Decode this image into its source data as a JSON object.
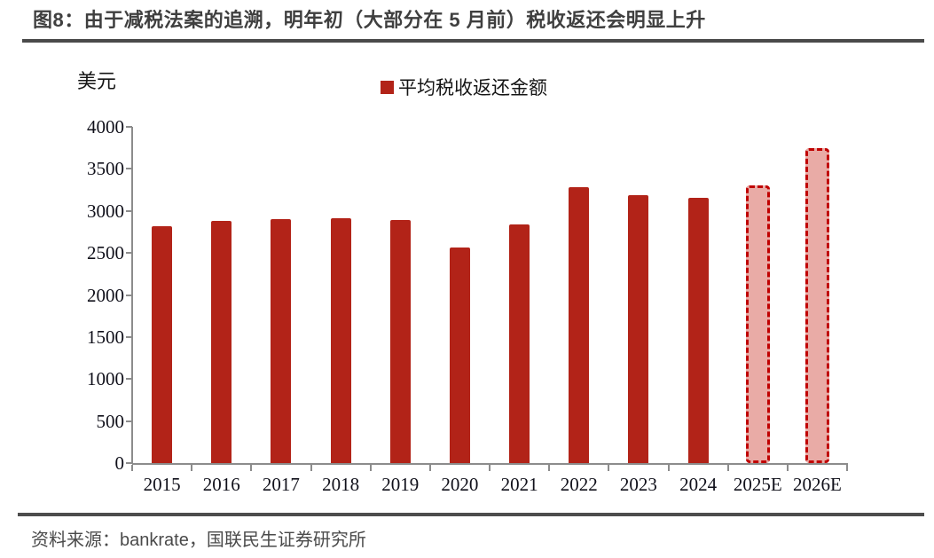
{
  "figure": {
    "title": "图8：由于减税法案的追溯，明年初（大部分在 5 月前）税收返还会明显上升",
    "source": "资料来源：bankrate，国联民生证券研究所"
  },
  "chart_data": {
    "type": "bar",
    "title": "平均税收返还金额",
    "ylabel_unit": "美元",
    "legend": {
      "label": "平均税收返还金额",
      "marker_color": "#b22318"
    },
    "categories": [
      "2015",
      "2016",
      "2017",
      "2018",
      "2019",
      "2020",
      "2021",
      "2022",
      "2023",
      "2024",
      "2025E",
      "2026E"
    ],
    "values": [
      2820,
      2880,
      2900,
      2915,
      2890,
      2560,
      2840,
      3280,
      3190,
      3160,
      3300,
      3750
    ],
    "estimate_flags": [
      false,
      false,
      false,
      false,
      false,
      false,
      false,
      false,
      false,
      false,
      true,
      true
    ],
    "ylim": [
      0,
      4000
    ],
    "yticks": [
      0,
      500,
      1000,
      1500,
      2000,
      2500,
      3000,
      3500,
      4000
    ],
    "grid": false,
    "legend_position": "top-center",
    "colors": {
      "bar": "#b22318",
      "estimate_fill": "#e9aba6",
      "estimate_border": "#c00000",
      "axis": "#8c8c8c",
      "title_text": "#3f3f3f",
      "rule": "#4a4a4a",
      "source_text": "#4a4a4a"
    }
  }
}
